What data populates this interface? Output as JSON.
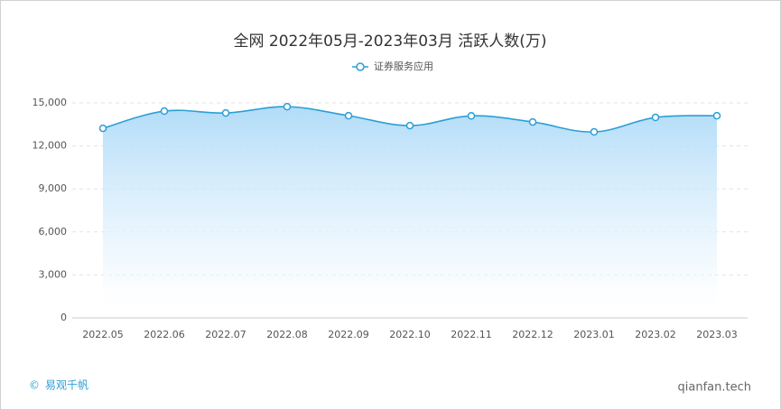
{
  "chart_data": {
    "type": "area",
    "title": "全网 2022年05月-2023年03月 活跃人数(万)",
    "categories": [
      "2022.05",
      "2022.06",
      "2022.07",
      "2022.08",
      "2022.09",
      "2022.10",
      "2022.11",
      "2022.12",
      "2023.01",
      "2023.02",
      "2023.03"
    ],
    "series": [
      {
        "name": "证券服务应用",
        "color": "#2b9fd6",
        "values": [
          13230,
          14430,
          14300,
          14740,
          14110,
          13420,
          14100,
          13670,
          12980,
          13990,
          14110
        ]
      }
    ],
    "ylim": [
      0,
      15000
    ],
    "yticks": [
      0,
      {
        "value": 3000,
        "label": "3,000"
      },
      {
        "value": 6000,
        "label": "6,000"
      },
      {
        "value": 9000,
        "label": "9,000"
      },
      {
        "value": 12000,
        "label": "12,000"
      },
      {
        "value": 15000,
        "label": "15,000"
      }
    ],
    "grid": true,
    "legend": "top",
    "footer_left": "易观千帆",
    "footer_right": "qianfan.tech"
  }
}
